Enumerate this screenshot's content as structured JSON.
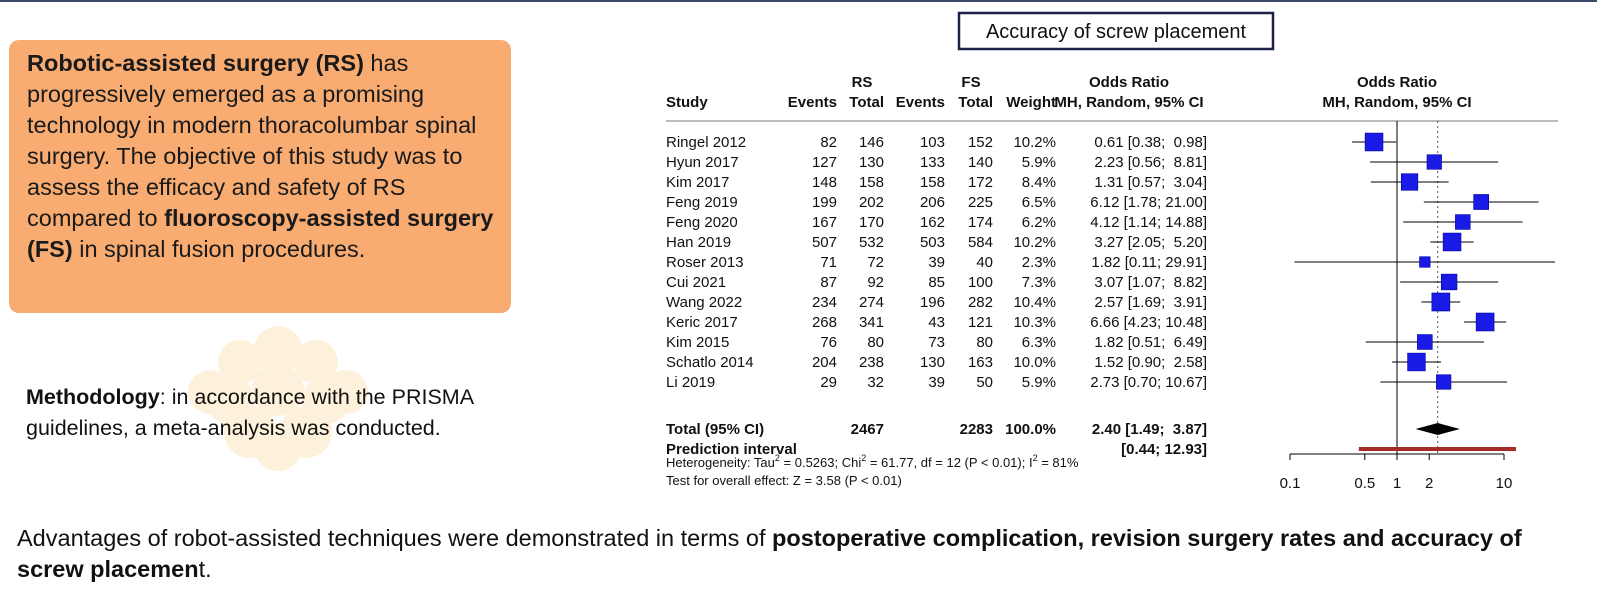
{
  "intro": {
    "part1_bold": "Robotic-assisted surgery (RS)",
    "part2": " has progressively emerged as a promising technology in modern thoracolumbar spinal surgery. The objective of this study was to assess the efficacy and safety of RS compared to ",
    "part3_bold": "fluoroscopy-assisted surgery (FS)",
    "part4": " in spinal fusion procedures."
  },
  "methodology": {
    "label": "Methodology",
    "text": ": in accordance with the PRISMA guidelines, a meta-analysis was conducted."
  },
  "conclusion": {
    "part1": "Advantages of robot-assisted techniques were demonstrated in terms of ",
    "part2_bold": "postoperative complication, revision surgery rates and accuracy of screw placemen",
    "part3": "t."
  },
  "colors": {
    "orange_panel": "#f8ac72",
    "square": "#1a1ae6",
    "prediction_bar": "#a52a2a",
    "diamond": "#000000"
  },
  "chart_data": {
    "type": "forest",
    "title": "Accuracy of screw placement",
    "headers": {
      "study": "Study",
      "rs": "RS",
      "fs": "FS",
      "events": "Events",
      "total": "Total",
      "weight": "Weight",
      "or_top": "Odds Ratio",
      "or_sub": "MH, Random, 95% CI",
      "plot_top": "Odds Ratio",
      "plot_sub": "MH, Random, 95% CI"
    },
    "studies": [
      {
        "study": "Ringel 2012",
        "rs_events": 82,
        "rs_total": 146,
        "fs_events": 103,
        "fs_total": 152,
        "weight": "10.2%",
        "or_text": "0.61 [0.38;  0.98]",
        "or": 0.61,
        "lo": 0.38,
        "hi": 0.98
      },
      {
        "study": "Hyun 2017",
        "rs_events": 127,
        "rs_total": 130,
        "fs_events": 133,
        "fs_total": 140,
        "weight": "5.9%",
        "or_text": "2.23 [0.56;  8.81]",
        "or": 2.23,
        "lo": 0.56,
        "hi": 8.81
      },
      {
        "study": "Kim 2017",
        "rs_events": 148,
        "rs_total": 158,
        "fs_events": 158,
        "fs_total": 172,
        "weight": "8.4%",
        "or_text": "1.31 [0.57;  3.04]",
        "or": 1.31,
        "lo": 0.57,
        "hi": 3.04
      },
      {
        "study": "Feng 2019",
        "rs_events": 199,
        "rs_total": 202,
        "fs_events": 206,
        "fs_total": 225,
        "weight": "6.5%",
        "or_text": "6.12 [1.78; 21.00]",
        "or": 6.12,
        "lo": 1.78,
        "hi": 21.0
      },
      {
        "study": "Feng 2020",
        "rs_events": 167,
        "rs_total": 170,
        "fs_events": 162,
        "fs_total": 174,
        "weight": "6.2%",
        "or_text": "4.12 [1.14; 14.88]",
        "or": 4.12,
        "lo": 1.14,
        "hi": 14.88
      },
      {
        "study": "Han 2019",
        "rs_events": 507,
        "rs_total": 532,
        "fs_events": 503,
        "fs_total": 584,
        "weight": "10.2%",
        "or_text": "3.27 [2.05;  5.20]",
        "or": 3.27,
        "lo": 2.05,
        "hi": 5.2
      },
      {
        "study": "Roser 2013",
        "rs_events": 71,
        "rs_total": 72,
        "fs_events": 39,
        "fs_total": 40,
        "weight": "2.3%",
        "or_text": "1.82 [0.11; 29.91]",
        "or": 1.82,
        "lo": 0.11,
        "hi": 29.91
      },
      {
        "study": "Cui 2021",
        "rs_events": 87,
        "rs_total": 92,
        "fs_events": 85,
        "fs_total": 100,
        "weight": "7.3%",
        "or_text": "3.07 [1.07;  8.82]",
        "or": 3.07,
        "lo": 1.07,
        "hi": 8.82
      },
      {
        "study": "Wang 2022",
        "rs_events": 234,
        "rs_total": 274,
        "fs_events": 196,
        "fs_total": 282,
        "weight": "10.4%",
        "or_text": "2.57 [1.69;  3.91]",
        "or": 2.57,
        "lo": 1.69,
        "hi": 3.91
      },
      {
        "study": "Keric 2017",
        "rs_events": 268,
        "rs_total": 341,
        "fs_events": 43,
        "fs_total": 121,
        "weight": "10.3%",
        "or_text": "6.66 [4.23; 10.48]",
        "or": 6.66,
        "lo": 4.23,
        "hi": 10.48
      },
      {
        "study": "Kim 2015",
        "rs_events": 76,
        "rs_total": 80,
        "fs_events": 73,
        "fs_total": 80,
        "weight": "6.3%",
        "or_text": "1.82 [0.51;  6.49]",
        "or": 1.82,
        "lo": 0.51,
        "hi": 6.49
      },
      {
        "study": "Schatlo 2014",
        "rs_events": 204,
        "rs_total": 238,
        "fs_events": 130,
        "fs_total": 163,
        "weight": "10.0%",
        "or_text": "1.52 [0.90;  2.58]",
        "or": 1.52,
        "lo": 0.9,
        "hi": 2.58
      },
      {
        "study": "Li 2019",
        "rs_events": 29,
        "rs_total": 32,
        "fs_events": 39,
        "fs_total": 50,
        "weight": "5.9%",
        "or_text": "2.73 [0.70; 10.67]",
        "or": 2.73,
        "lo": 0.7,
        "hi": 10.67
      }
    ],
    "total": {
      "label": "Total (95% CI)",
      "rs_total": 2467,
      "fs_total": 2283,
      "weight": "100.0%",
      "or_text": "2.40 [1.49;  3.87]",
      "or": 2.4,
      "lo": 1.49,
      "hi": 3.87
    },
    "prediction": {
      "label": "Prediction interval",
      "ci_text": "[0.44; 12.93]",
      "lo": 0.44,
      "hi": 12.93
    },
    "heterogeneity": "Heterogeneity: Tau² = 0.5263; Chi² = 61.77, df = 12 (P < 0.01); I² = 81%",
    "overall_test": "Test for overall effect: Z = 3.58 (P < 0.01)",
    "x_scale": "log",
    "x_ticks": [
      0.1,
      0.5,
      1,
      2,
      10
    ],
    "x_tick_labels": [
      "0.1",
      "0.5",
      "1",
      "2",
      "10"
    ],
    "xlim": [
      0.1,
      10
    ]
  }
}
